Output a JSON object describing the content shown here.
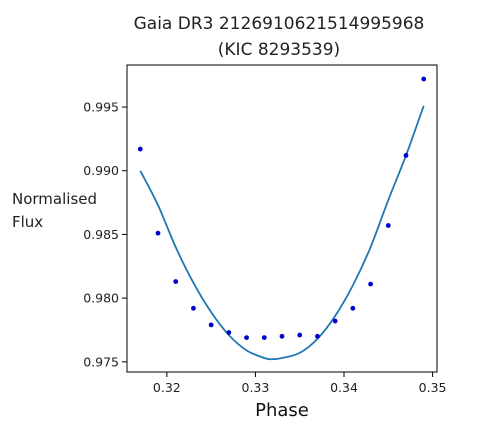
{
  "chart_data": {
    "type": "scatter",
    "title_line1": "Gaia DR3 2126910621514995968",
    "title_line2": "(KIC 8293539)",
    "xlabel": "Phase",
    "ylabel_line1": "Normalised",
    "ylabel_line2": "Flux",
    "xlim": [
      0.3155,
      0.3505
    ],
    "ylim": [
      0.9742,
      0.9983
    ],
    "xticks": [
      0.32,
      0.33,
      0.34,
      0.35
    ],
    "xtick_labels": [
      "0.32",
      "0.33",
      "0.34",
      "0.35"
    ],
    "yticks": [
      0.975,
      0.98,
      0.985,
      0.99,
      0.995
    ],
    "ytick_labels": [
      "0.975",
      "0.980",
      "0.985",
      "0.990",
      "0.995"
    ],
    "grid": false,
    "series": [
      {
        "kind": "points",
        "color": "#0000cc",
        "x": [
          0.317,
          0.319,
          0.321,
          0.323,
          0.325,
          0.327,
          0.329,
          0.331,
          0.333,
          0.335,
          0.337,
          0.339,
          0.341,
          0.343,
          0.345,
          0.347,
          0.349
        ],
        "y": [
          0.9917,
          0.9851,
          0.9813,
          0.9792,
          0.9779,
          0.9773,
          0.9769,
          0.9769,
          0.977,
          0.9771,
          0.977,
          0.9782,
          0.9792,
          0.9811,
          0.9857,
          0.9912,
          0.9972
        ]
      },
      {
        "kind": "fit",
        "color": "#1f77b4",
        "x": [
          0.317,
          0.319,
          0.321,
          0.323,
          0.325,
          0.327,
          0.329,
          0.331,
          0.3318,
          0.333,
          0.335,
          0.337,
          0.339,
          0.341,
          0.343,
          0.345,
          0.347,
          0.349
        ],
        "y": [
          0.99,
          0.9873,
          0.984,
          0.9812,
          0.9789,
          0.9771,
          0.9759,
          0.9753,
          0.9752,
          0.9753,
          0.9757,
          0.9768,
          0.9786,
          0.981,
          0.984,
          0.9877,
          0.9912,
          0.9951
        ]
      }
    ]
  }
}
